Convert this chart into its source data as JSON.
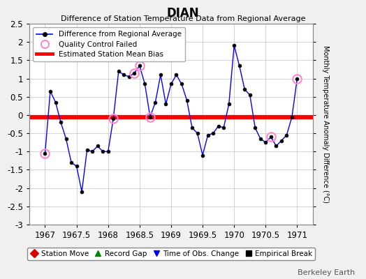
{
  "title": "DIAN",
  "subtitle": "Difference of Station Temperature Data from Regional Average",
  "ylabel_right": "Monthly Temperature Anomaly Difference (°C)",
  "credit": "Berkeley Earth",
  "bias": -0.05,
  "xlim": [
    1966.75,
    1971.25
  ],
  "ylim": [
    -3.0,
    2.5
  ],
  "yticks": [
    -3,
    -2.5,
    -2,
    -1.5,
    -1,
    -0.5,
    0,
    0.5,
    1,
    1.5,
    2,
    2.5
  ],
  "xticks": [
    1967,
    1967.5,
    1968,
    1968.5,
    1969,
    1969.5,
    1970,
    1970.5,
    1971
  ],
  "background_color": "#f0f0f0",
  "plot_bg_color": "#ffffff",
  "line_color": "#0000ff",
  "marker_color": "#000000",
  "bias_color": "#ff0000",
  "qc_color": "#ff88cc",
  "data_x": [
    1967.0,
    1967.083,
    1967.167,
    1967.25,
    1967.333,
    1967.417,
    1967.5,
    1967.583,
    1967.667,
    1967.75,
    1967.833,
    1967.917,
    1968.0,
    1968.083,
    1968.167,
    1968.25,
    1968.333,
    1968.417,
    1968.5,
    1968.583,
    1968.667,
    1968.75,
    1968.833,
    1968.917,
    1969.0,
    1969.083,
    1969.167,
    1969.25,
    1969.333,
    1969.417,
    1969.5,
    1969.583,
    1969.667,
    1969.75,
    1969.833,
    1969.917,
    1970.0,
    1970.083,
    1970.167,
    1970.25,
    1970.333,
    1970.417,
    1970.5,
    1970.583,
    1970.667,
    1970.75,
    1970.833,
    1970.917,
    1971.0
  ],
  "data_y": [
    -1.05,
    0.65,
    0.35,
    -0.2,
    -0.65,
    -1.3,
    -1.4,
    -2.1,
    -0.95,
    -1.0,
    -0.85,
    -1.0,
    -1.0,
    -0.1,
    1.2,
    1.1,
    1.05,
    1.15,
    1.35,
    0.85,
    -0.05,
    0.35,
    1.1,
    0.3,
    0.85,
    1.1,
    0.85,
    0.4,
    -0.35,
    -0.5,
    -1.1,
    -0.55,
    -0.5,
    -0.3,
    -0.35,
    0.3,
    1.9,
    1.35,
    0.7,
    0.55,
    -0.35,
    -0.65,
    -0.75,
    -0.6,
    -0.85,
    -0.7,
    -0.55,
    -0.05,
    1.0
  ],
  "qc_failed_x": [
    1967.0,
    1968.083,
    1968.417,
    1968.5,
    1968.667,
    1970.583,
    1971.0
  ],
  "qc_failed_y": [
    -1.05,
    -0.1,
    1.15,
    1.35,
    -0.05,
    -0.6,
    1.0
  ],
  "legend2_items": [
    {
      "label": "Station Move",
      "color": "#dd0000",
      "marker": "D"
    },
    {
      "label": "Record Gap",
      "color": "#008800",
      "marker": "^"
    },
    {
      "label": "Time of Obs. Change",
      "color": "#0000ff",
      "marker": "v"
    },
    {
      "label": "Empirical Break",
      "color": "#000000",
      "marker": "s"
    }
  ]
}
